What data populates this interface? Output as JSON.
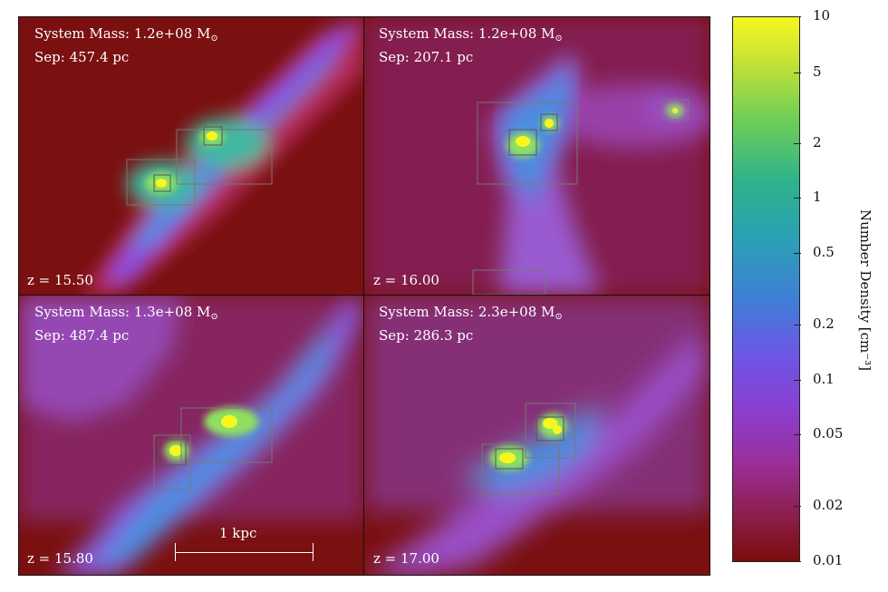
{
  "panels": [
    {
      "mass_label": "System Mass: 1.2e+08 M",
      "sep_label": "Sep: 457.4 pc",
      "z_label": "z = 15.50"
    },
    {
      "mass_label": "System Mass: 1.2e+08 M",
      "sep_label": "Sep: 207.1 pc",
      "z_label": "z = 16.00"
    },
    {
      "mass_label": "System Mass: 1.3e+08 M",
      "sep_label": "Sep: 487.4 pc",
      "z_label": "z = 15.80"
    },
    {
      "mass_label": "System Mass: 2.3e+08 M",
      "sep_label": "Sep: 286.3 pc",
      "z_label": "z = 17.00"
    }
  ],
  "solar_symbol": "⊙",
  "scalebar_label": "1 kpc",
  "colorbar": {
    "title": "Number Density [cm⁻³]",
    "ticks": [
      "10",
      "5",
      "2",
      "1",
      "0.5",
      "0.2",
      "0.1",
      "0.05",
      "0.02",
      "0.01"
    ]
  },
  "colors": {
    "low": "#7a1010",
    "high": "#f7f71f"
  }
}
